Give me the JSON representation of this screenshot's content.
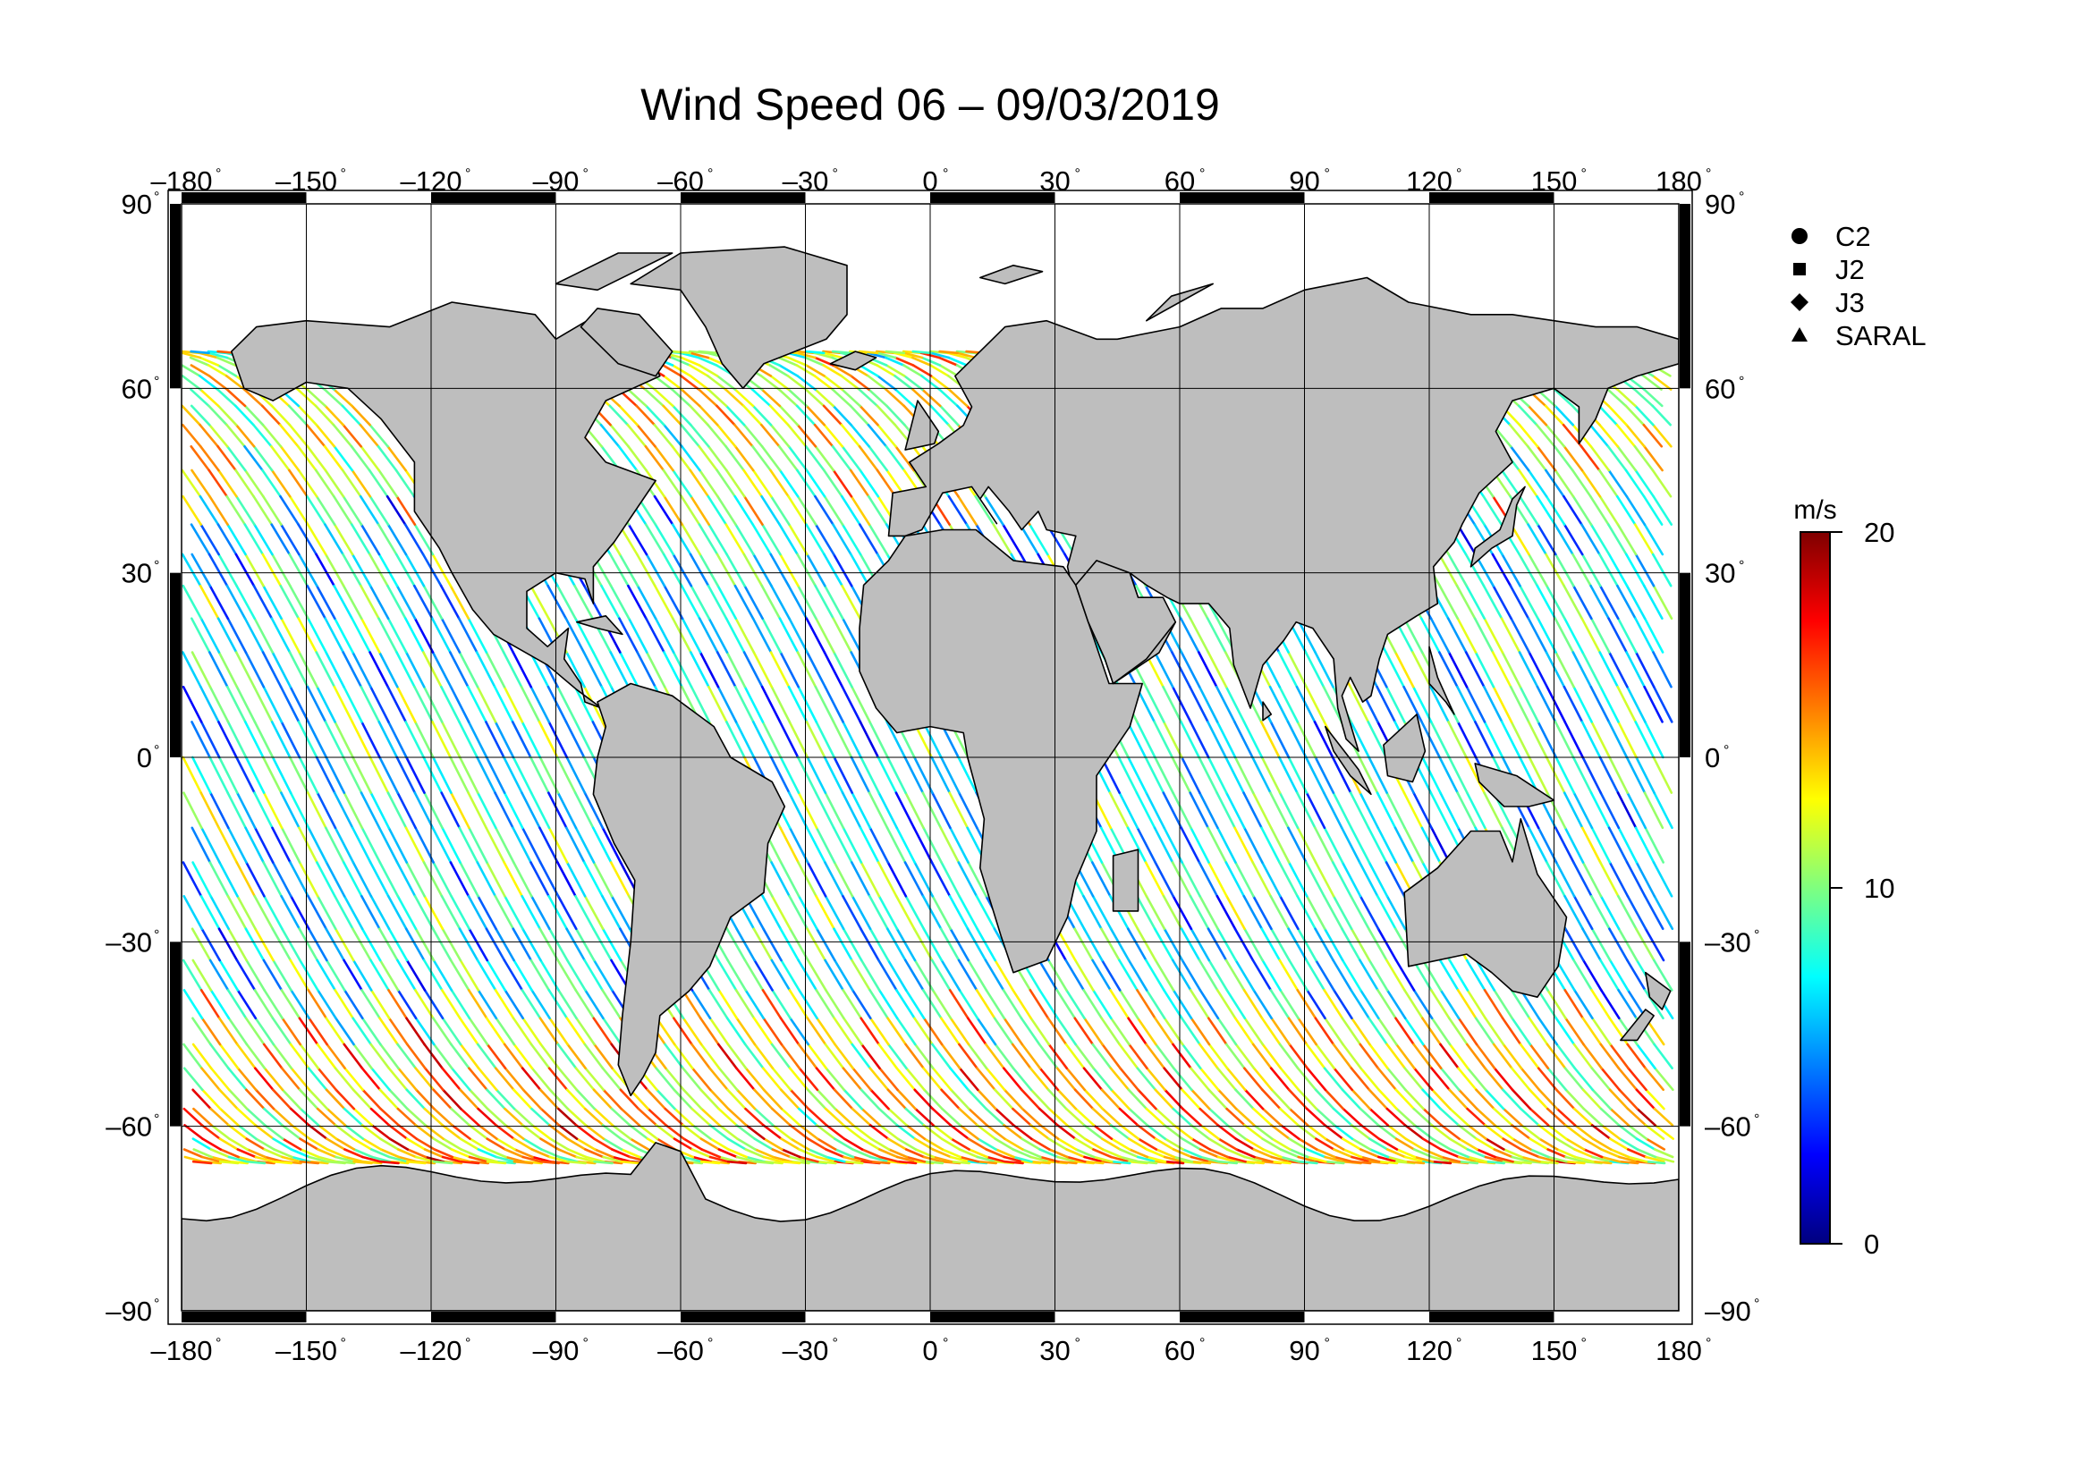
{
  "title": "Wind Speed 06 – 09/03/2019",
  "axes": {
    "lon_labels": [
      "–180",
      "–150",
      "–120",
      "–90",
      "–60",
      "–30",
      "0",
      "30",
      "60",
      "90",
      "120",
      "150",
      "180"
    ],
    "lat_labels": [
      "90",
      "60",
      "30",
      "0",
      "–30",
      "–60",
      "–90"
    ],
    "degree_symbol": "°",
    "lon_range": [
      -180,
      180
    ],
    "lat_range": [
      -90,
      90
    ],
    "grid": true
  },
  "legend": {
    "placement": "right",
    "items": [
      {
        "symbol": "circle",
        "label": "C2"
      },
      {
        "symbol": "square",
        "label": "J2"
      },
      {
        "symbol": "diamond",
        "label": "J3"
      },
      {
        "symbol": "triangle",
        "label": "SARAL"
      }
    ]
  },
  "colorbar": {
    "unit": "m/s",
    "min": 0,
    "max": 20,
    "tick_labels": [
      "20",
      "10",
      "0"
    ],
    "colors": [
      "#00007f",
      "#0000ff",
      "#007fff",
      "#00ffff",
      "#7fff7f",
      "#ffff00",
      "#ff7f00",
      "#ff0000",
      "#7f0000"
    ]
  },
  "colors": {
    "land": "#bebebe",
    "coast": "#000000",
    "grid": "#000000",
    "ocean": "#ffffff"
  },
  "chart_data": {
    "type": "map",
    "projection": "equirectangular",
    "variable": "wind speed",
    "units": "m/s",
    "satellites": [
      "C2",
      "J2",
      "J3",
      "SARAL"
    ],
    "track_latitude_limit": [
      -66,
      66
    ]
  }
}
